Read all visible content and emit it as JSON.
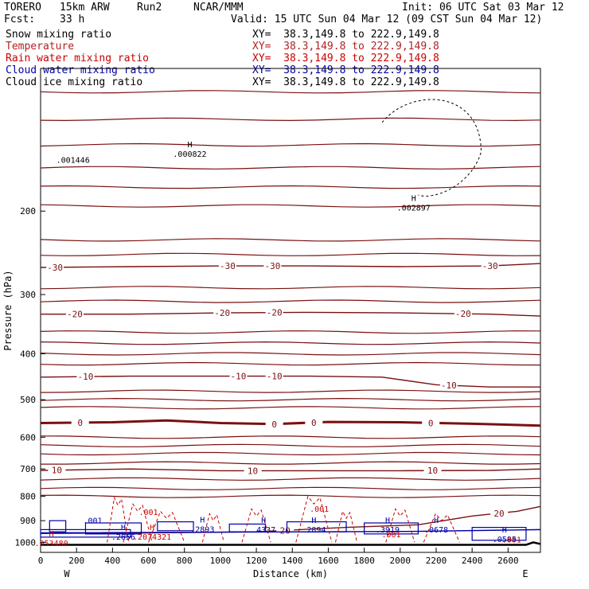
{
  "header": {
    "model": "TORERO",
    "resolution": "15km ARW",
    "run": "Run2",
    "agency": "NCAR/MMM",
    "init": "Init: 06 UTC Sat 03 Mar 12",
    "fcst_label": "Fcst:",
    "fcst_value": "33 h",
    "valid": "Valid: 15 UTC Sun 04 Mar 12 (09 CST Sun 04 Mar 12)"
  },
  "legend": [
    {
      "label": "Snow mixing ratio",
      "xy": "XY=  38.3,149.8 to 222.9,149.8",
      "color": "#000000"
    },
    {
      "label": "Temperature",
      "xy": "XY=  38.3,149.8 to 222.9,149.8",
      "color": "#b22222"
    },
    {
      "label": "Rain water mixing ratio",
      "xy": "XY=  38.3,149.8 to 222.9,149.8",
      "color": "#cc0000"
    },
    {
      "label": "Cloud water mixing ratio",
      "xy": "XY=  38.3,149.8 to 222.9,149.8",
      "color": "#0000aa"
    },
    {
      "label": "Cloud ice mixing ratio",
      "xy": "XY=  38.3,149.8 to 222.9,149.8",
      "color": "#000000"
    }
  ],
  "chart_data": {
    "type": "line",
    "title": "",
    "xlabel": "Distance (km)",
    "ylabel": "Pressure (hPa)",
    "xlim": [
      0,
      2780
    ],
    "ylim": [
      1050,
      100
    ],
    "y_scale": "log",
    "x_ticks": [
      0,
      200,
      400,
      600,
      800,
      1000,
      1200,
      1400,
      1600,
      1800,
      2000,
      2200,
      2400,
      2600
    ],
    "x_tick_labels": [
      "0",
      "200",
      "400",
      "600",
      "800",
      "1000",
      "1200",
      "1400",
      "1600",
      "1800",
      "2000",
      "2200",
      "2400",
      "2600"
    ],
    "y_ticks": [
      200,
      300,
      400,
      500,
      600,
      700,
      800,
      900,
      1000
    ],
    "y_tick_labels": [
      "200",
      "300",
      "400",
      "500",
      "600",
      "700",
      "800",
      "900",
      "1000"
    ],
    "x_end_labels": {
      "left": "W",
      "right": "E"
    },
    "temperature_isotherms": [
      {
        "temp": -30,
        "labels": [
          {
            "x": 80,
            "text": "-30"
          },
          {
            "x": 1040,
            "text": "-30"
          },
          {
            "x": 1290,
            "text": "-30"
          },
          {
            "x": 2500,
            "text": "-30"
          }
        ],
        "points": [
          [
            0,
            263
          ],
          [
            500,
            262
          ],
          [
            1000,
            261
          ],
          [
            1500,
            261
          ],
          [
            2000,
            262
          ],
          [
            2500,
            261
          ],
          [
            2780,
            258
          ]
        ]
      },
      {
        "temp": -20,
        "labels": [
          {
            "x": 190,
            "text": "-20"
          },
          {
            "x": 1010,
            "text": "-20"
          },
          {
            "x": 1300,
            "text": "-20"
          },
          {
            "x": 2350,
            "text": "-20"
          }
        ],
        "points": [
          [
            0,
            330
          ],
          [
            500,
            330
          ],
          [
            1000,
            328
          ],
          [
            1500,
            327
          ],
          [
            2000,
            328
          ],
          [
            2500,
            330
          ],
          [
            2780,
            333
          ]
        ]
      },
      {
        "temp": -10,
        "labels": [
          {
            "x": 250,
            "text": "-10"
          },
          {
            "x": 1100,
            "text": "-10"
          },
          {
            "x": 1300,
            "text": "-10"
          },
          {
            "x": 2270,
            "text": "-10"
          }
        ],
        "points": [
          [
            0,
            448
          ],
          [
            500,
            446
          ],
          [
            1000,
            446
          ],
          [
            1500,
            446
          ],
          [
            1900,
            448
          ],
          [
            2200,
            465
          ],
          [
            2500,
            470
          ],
          [
            2780,
            470
          ]
        ]
      },
      {
        "temp": 0,
        "labels": [
          {
            "x": 220,
            "text": "0"
          },
          {
            "x": 1300,
            "text": "0"
          },
          {
            "x": 1520,
            "text": "0"
          },
          {
            "x": 2170,
            "text": "0"
          }
        ],
        "points": [
          [
            0,
            560
          ],
          [
            400,
            558
          ],
          [
            700,
            553
          ],
          [
            1000,
            560
          ],
          [
            1300,
            563
          ],
          [
            1600,
            557
          ],
          [
            2000,
            558
          ],
          [
            2400,
            562
          ],
          [
            2780,
            567
          ]
        ]
      },
      {
        "temp": 10,
        "labels": [
          {
            "x": 90,
            "text": "10"
          },
          {
            "x": 1180,
            "text": "10"
          },
          {
            "x": 2180,
            "text": "10"
          }
        ],
        "points": [
          [
            0,
            705
          ],
          [
            500,
            700
          ],
          [
            1000,
            706
          ],
          [
            1500,
            706
          ],
          [
            2000,
            706
          ],
          [
            2500,
            705
          ],
          [
            2780,
            700
          ]
        ]
      },
      {
        "temp": 20,
        "labels": [
          {
            "x": 1360,
            "text": "20"
          },
          {
            "x": 2550,
            "text": "20"
          }
        ],
        "points": [
          [
            0,
            958
          ],
          [
            600,
            955
          ],
          [
            1200,
            950
          ],
          [
            1700,
            930
          ],
          [
            2100,
            918
          ],
          [
            2400,
            880
          ],
          [
            2650,
            860
          ],
          [
            2780,
            840
          ]
        ]
      }
    ],
    "maxima_labels": [
      {
        "field": "Snow mixing ratio",
        "marker": "H",
        "value": ".002897",
        "x": 2075,
        "p": 195
      },
      {
        "field": "Cloud ice mixing ratio",
        "marker": "H",
        "value": ".000822",
        "x": 830,
        "p": 150
      },
      {
        "field": "Cloud water mixing ratio",
        "marker": "H",
        "value": ".2893",
        "x": 900,
        "p": 930
      },
      {
        "field": "Cloud water mixing ratio",
        "marker": "H",
        "value": ".4337",
        "x": 1240,
        "p": 932
      },
      {
        "field": "Cloud water mixing ratio",
        "marker": "H",
        "value": ".2894",
        "x": 1520,
        "p": 932
      },
      {
        "field": "Cloud water mixing ratio",
        "marker": "H",
        "value": ".3919",
        "x": 1930,
        "p": 932
      },
      {
        "field": "Cloud water mixing ratio",
        "marker": "H",
        "value": ".0678",
        "x": 2200,
        "p": 932
      },
      {
        "field": "Cloud water mixing ratio",
        "marker": "H",
        "value": ".2656",
        "x": 460,
        "p": 965
      },
      {
        "field": "Rain water mixing ratio",
        "marker": "H",
        "value": ".2074321",
        "x": 620,
        "p": 965
      },
      {
        "field": "Rain water mixing ratio",
        "marker": "H",
        "value": ".053480",
        "x": 60,
        "p": 995
      },
      {
        "field": "Cloud water mixing ratio",
        "marker": "H",
        "value": ".0585",
        "x": 2580,
        "p": 975
      }
    ],
    "contour_labels": [
      {
        "field": "Rain water mixing ratio",
        "text": ".001",
        "x": 600,
        "p": 875
      },
      {
        "field": "Rain water mixing ratio",
        "text": ".001",
        "x": 1550,
        "p": 862
      },
      {
        "field": "Cloud water mixing ratio",
        "text": ".001",
        "x": 290,
        "p": 912
      },
      {
        "field": "Rain water mixing ratio",
        "text": ".001",
        "x": 1950,
        "p": 975
      },
      {
        "field": "Rain water mixing ratio",
        "text": ".001",
        "x": 2620,
        "p": 1000
      },
      {
        "field": "Snow mixing ratio",
        "text": ".001446",
        "x": 180,
        "p": 158
      }
    ]
  }
}
